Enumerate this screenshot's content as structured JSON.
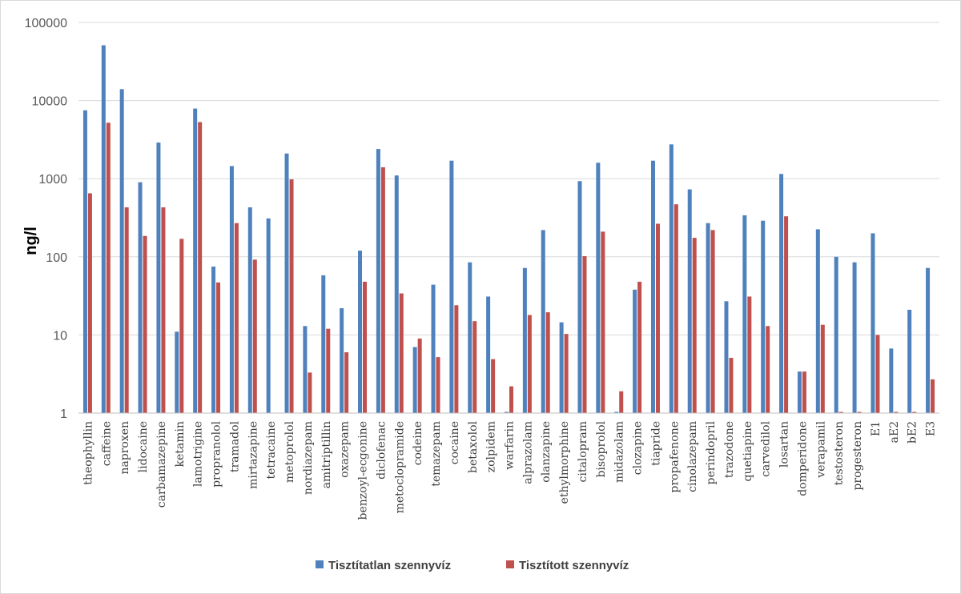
{
  "chart_data": {
    "type": "bar",
    "title": "",
    "xlabel": "",
    "ylabel": "ng/l",
    "yscale": "log",
    "ylim": [
      1,
      100000
    ],
    "yticks": [
      "1",
      "10",
      "100",
      "1000",
      "10000",
      "100000"
    ],
    "grid": "horizontal",
    "legend_position": "bottom",
    "categories": [
      "theophyllin",
      "caffeine",
      "naproxen",
      "lidocaine",
      "carbamazepine",
      "ketamin",
      "lamotrigine",
      "propranolol",
      "tramadol",
      "mirtazapine",
      "tetracaine",
      "metoprolol",
      "nordiazepam",
      "amitriptillin",
      "oxazepam",
      "benzoyl-ecgonine",
      "diclofenac",
      "metoclopramide",
      "codeine",
      "temazepam",
      "cocaine",
      "betaxolol",
      "zolpidem",
      "warfarin",
      "alprazolam",
      "olanzapine",
      "ethylmorphine",
      "citalopram",
      "bisoprolol",
      "midazolam",
      "clozapine",
      "tiapride",
      "propafenone",
      "cinolazepam",
      "perindopril",
      "trazodone",
      "quetiapine",
      "carvedilol",
      "losartan",
      "domperidone",
      "verapamil",
      "testosteron",
      "progesteron",
      "E1",
      "aE2",
      "bE2",
      "E3"
    ],
    "series": [
      {
        "name": "Tisztítatlan szennyvíz",
        "color": "#4f81bd",
        "values": [
          7500,
          51000,
          14000,
          900,
          2900,
          11,
          7900,
          75,
          1450,
          430,
          310,
          2100,
          13,
          58,
          22,
          120,
          2400,
          1100,
          7,
          44,
          1700,
          85,
          31,
          1,
          72,
          220,
          14.5,
          930,
          1600,
          1,
          38,
          1700,
          2750,
          730,
          270,
          27,
          340,
          290,
          1150,
          3.4,
          225,
          100,
          85,
          200,
          6.7,
          21,
          72
        ]
      },
      {
        "name": "Tisztított szennyvíz",
        "color": "#c0504d",
        "values": [
          650,
          5200,
          430,
          185,
          430,
          170,
          5300,
          47,
          270,
          92,
          null,
          980,
          3.3,
          12,
          6,
          48,
          1400,
          34,
          9,
          5.2,
          24,
          15,
          4.9,
          2.2,
          18,
          19.5,
          10.3,
          102,
          210,
          1.9,
          48,
          265,
          470,
          175,
          220,
          5.1,
          31,
          13,
          330,
          3.4,
          13.5,
          1,
          1,
          10,
          1,
          1,
          2.7
        ]
      }
    ]
  }
}
